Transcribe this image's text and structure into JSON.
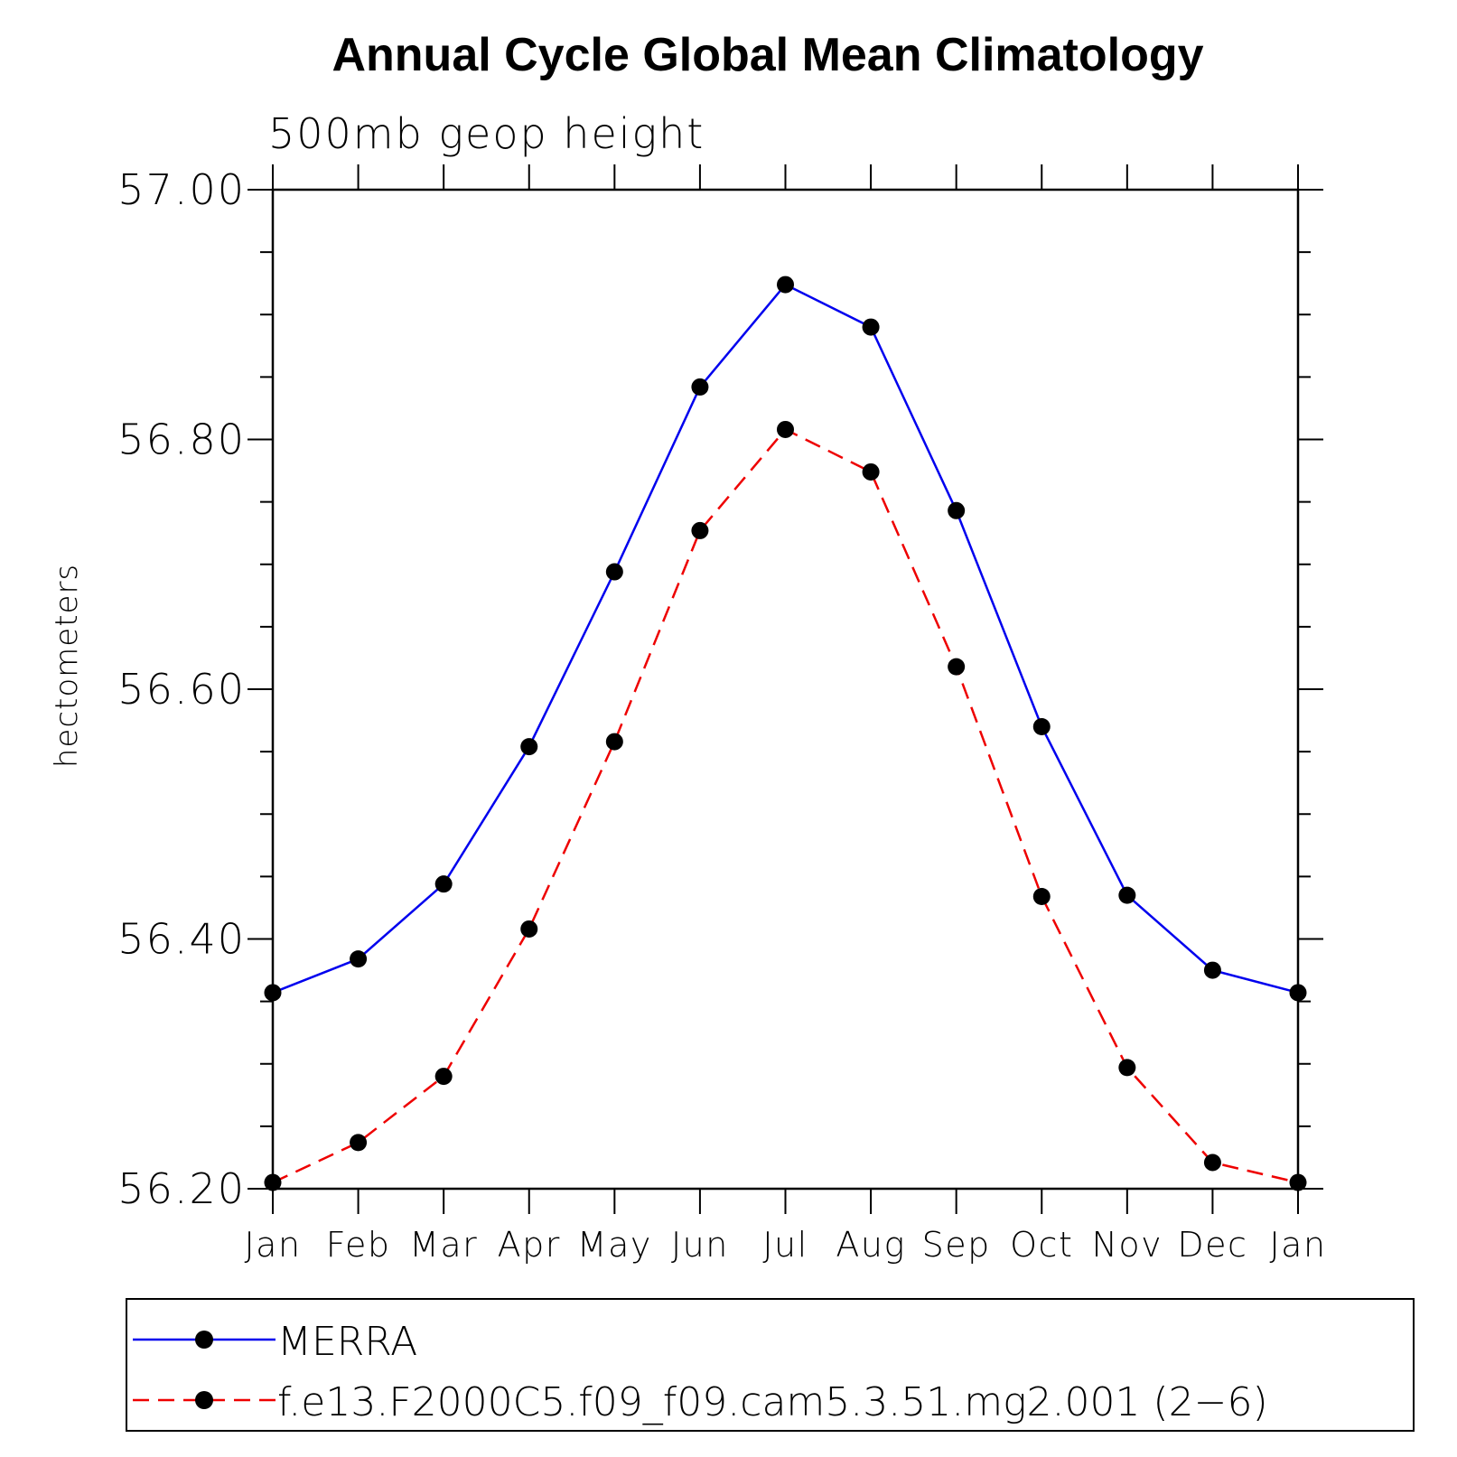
{
  "chart_data": {
    "type": "line",
    "title": "Annual Cycle Global Mean Climatology",
    "subtitle": "500mb geop height",
    "ylabel": "hectometers",
    "xlabel": "",
    "categories": [
      "Jan",
      "Feb",
      "Mar",
      "Apr",
      "May",
      "Jun",
      "Jul",
      "Aug",
      "Sep",
      "Oct",
      "Nov",
      "Dec",
      "Jan"
    ],
    "ylim": [
      56.2,
      57.0
    ],
    "yticks": [
      56.2,
      56.4,
      56.6,
      56.8,
      57.0
    ],
    "ytick_labels": [
      "56.20",
      "56.40",
      "56.60",
      "56.80",
      "57.00"
    ],
    "y_minor_step": 0.05,
    "grid": false,
    "legend_position": "bottom",
    "series": [
      {
        "name": "MERRA",
        "color": "#0000ee",
        "line_style": "solid",
        "marker": "filled-circle",
        "values": [
          56.357,
          56.384,
          56.444,
          56.554,
          56.694,
          56.842,
          56.924,
          56.89,
          56.743,
          56.57,
          56.435,
          56.375,
          56.357
        ]
      },
      {
        "name": "f.e13.F2000C5.f09_f09.cam5.3.51.mg2.001 (2−6)",
        "color": "#ee0000",
        "line_style": "dashed",
        "marker": "filled-circle",
        "values": [
          56.205,
          56.237,
          56.29,
          56.408,
          56.558,
          56.727,
          56.808,
          56.774,
          56.618,
          56.434,
          56.297,
          56.221,
          56.205
        ]
      }
    ]
  }
}
